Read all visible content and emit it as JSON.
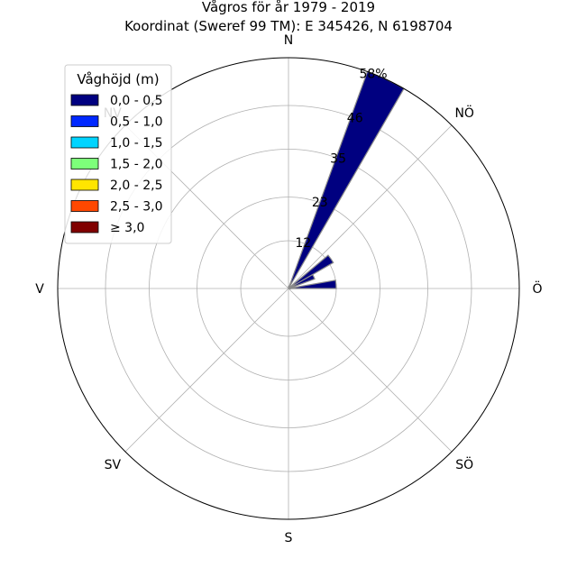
{
  "chart_data": {
    "type": "windrose",
    "title": "Vågros för år 1979 - 2019",
    "subtitle": "Koordinat (Sweref 99 TM): E 345426, N 6198704",
    "directions": [
      "N",
      "NÖ",
      "Ö",
      "SÖ",
      "S",
      "SV",
      "V",
      "NV"
    ],
    "radial_unit": "%",
    "radial_max": 58,
    "radial_ticks": [
      12,
      23,
      35,
      46,
      58
    ],
    "radial_tick_labels": [
      "12",
      "23",
      "35",
      "46",
      "58%"
    ],
    "sector_width_deg": 10,
    "sectors": [
      {
        "angle_deg": 5,
        "value": 0.5
      },
      {
        "angle_deg": 15,
        "value": 0.5
      },
      {
        "angle_deg": 25,
        "value": 58
      },
      {
        "angle_deg": 35,
        "value": 0.5
      },
      {
        "angle_deg": 45,
        "value": 0.5
      },
      {
        "angle_deg": 55,
        "value": 13
      },
      {
        "angle_deg": 65,
        "value": 7
      },
      {
        "angle_deg": 75,
        "value": 1.5
      },
      {
        "angle_deg": 85,
        "value": 12
      },
      {
        "angle_deg": 95,
        "value": 0.5
      }
    ],
    "series": [
      {
        "name": "0,0 - 0,5",
        "color": "#000080"
      },
      {
        "name": "0,5 - 1,0",
        "color": "#0028ff"
      },
      {
        "name": "1,0 - 1,5",
        "color": "#00d4ff"
      },
      {
        "name": "1,5 - 2,0",
        "color": "#7dff7a"
      },
      {
        "name": "2,0 - 2,5",
        "color": "#ffe500"
      },
      {
        "name": "2,5 - 3,0",
        "color": "#ff4800"
      },
      {
        "name": "≥ 3,0",
        "color": "#800000"
      }
    ],
    "legend_title": "Våghöjd (m)",
    "legend_position": "top-left",
    "grid": true
  }
}
